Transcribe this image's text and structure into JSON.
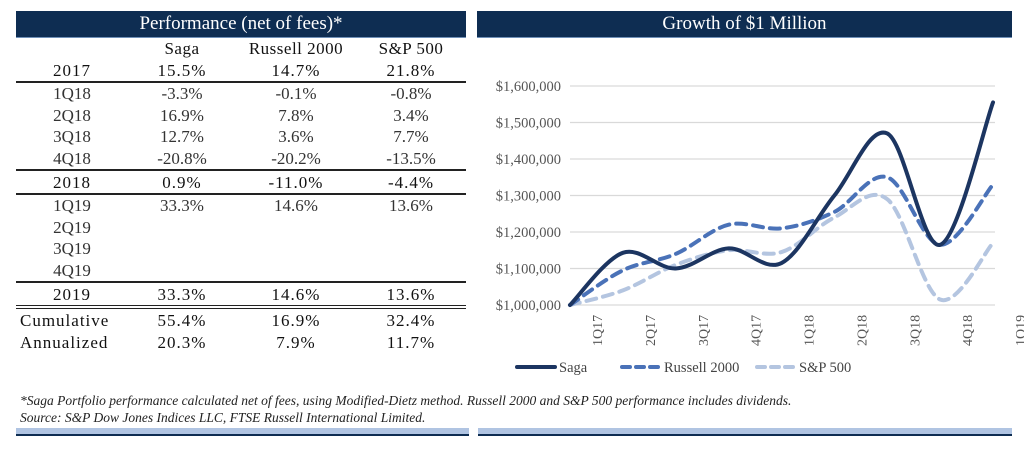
{
  "performance_table": {
    "title": "Performance (net of fees)*",
    "columns": [
      "",
      "Saga",
      "Russell 2000",
      "S&P 500"
    ],
    "rows": [
      {
        "label": "2017",
        "type": "year",
        "values": [
          "15.5%",
          "14.7%",
          "21.8%"
        ]
      },
      {
        "label": "1Q18",
        "type": "quarter",
        "values": [
          "-3.3%",
          "-0.1%",
          "-0.8%"
        ]
      },
      {
        "label": "2Q18",
        "type": "quarter",
        "values": [
          "16.9%",
          "7.8%",
          "3.4%"
        ]
      },
      {
        "label": "3Q18",
        "type": "quarter",
        "values": [
          "12.7%",
          "3.6%",
          "7.7%"
        ]
      },
      {
        "label": "4Q18",
        "type": "quarter",
        "values": [
          "-20.8%",
          "-20.2%",
          "-13.5%"
        ]
      },
      {
        "label": "2018",
        "type": "year",
        "values": [
          "0.9%",
          "-11.0%",
          "-4.4%"
        ]
      },
      {
        "label": "1Q19",
        "type": "quarter",
        "values": [
          "33.3%",
          "14.6%",
          "13.6%"
        ]
      },
      {
        "label": "2Q19",
        "type": "quarter",
        "values": [
          "",
          "",
          ""
        ]
      },
      {
        "label": "3Q19",
        "type": "quarter",
        "values": [
          "",
          "",
          ""
        ]
      },
      {
        "label": "4Q19",
        "type": "quarter",
        "values": [
          "",
          "",
          ""
        ]
      },
      {
        "label": "2019",
        "type": "year",
        "values": [
          "33.3%",
          "14.6%",
          "13.6%"
        ]
      }
    ],
    "summary": [
      {
        "label": "Cumulative",
        "values": [
          "55.4%",
          "16.9%",
          "32.4%"
        ]
      },
      {
        "label": "Annualized",
        "values": [
          "20.3%",
          "7.9%",
          "11.7%"
        ]
      }
    ]
  },
  "footnote": {
    "line1": "*Saga Portfolio performance calculated net of fees, using Modified-Dietz method. Russell 2000 and S&P 500 performance includes dividends.",
    "line2": "Source: S&P Dow Jones Indices LLC, FTSE Russell International Limited."
  },
  "chart_data": {
    "type": "line",
    "title": "Growth of $1 Million",
    "xlabel": "",
    "ylabel": "",
    "categories": [
      "1Q17",
      "2Q17",
      "3Q17",
      "4Q17",
      "1Q18",
      "2Q18",
      "3Q18",
      "4Q18",
      "1Q19"
    ],
    "ylim": [
      1000000,
      1600000
    ],
    "yticks": [
      1000000,
      1100000,
      1200000,
      1300000,
      1400000,
      1500000,
      1600000
    ],
    "ytick_labels": [
      "$1,000,000",
      "$1,100,000",
      "$1,200,000",
      "$1,300,000",
      "$1,400,000",
      "$1,500,000",
      "$1,600,000"
    ],
    "grid": true,
    "legend_position": "bottom",
    "series": [
      {
        "name": "Saga",
        "style": "solid",
        "color": "#1c3561",
        "values": [
          1000000,
          1143000,
          1100000,
          1155000,
          1115000,
          1300000,
          1470000,
          1165000,
          1555000
        ]
      },
      {
        "name": "Russell 2000",
        "style": "dashed",
        "color": "#4a72b8",
        "values": [
          1000000,
          1095000,
          1140000,
          1220000,
          1210000,
          1255000,
          1350000,
          1165000,
          1330000
        ]
      },
      {
        "name": "S&P 500",
        "style": "dashed",
        "color": "#b4c5e0",
        "values": [
          1000000,
          1040000,
          1110000,
          1150000,
          1145000,
          1240000,
          1290000,
          1015000,
          1170000
        ]
      }
    ]
  }
}
